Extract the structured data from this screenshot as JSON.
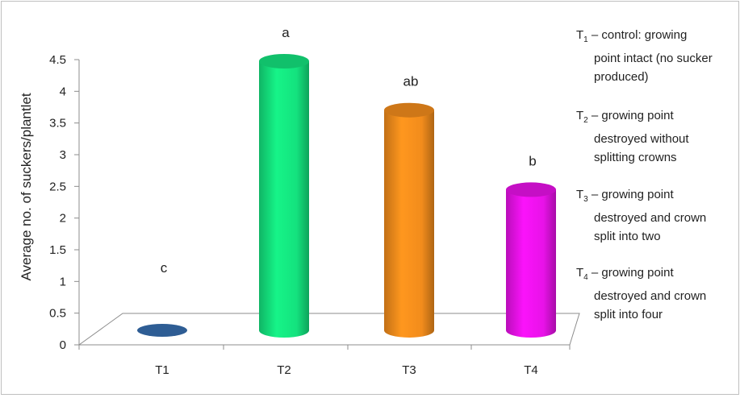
{
  "chart_data": {
    "type": "bar",
    "ylabel": "Average no. of suckers/plantlet",
    "ylim": [
      0,
      4.5
    ],
    "yticks": [
      "0",
      "0.5",
      "1",
      "1.5",
      "2",
      "2.5",
      "3",
      "3.5",
      "4",
      "4.5"
    ],
    "categories": [
      "T1",
      "T2",
      "T3",
      "T4"
    ],
    "values": [
      0,
      4.4,
      3.6,
      2.3
    ],
    "significance_letters": [
      "c",
      "a",
      "ab",
      "b"
    ],
    "colors": [
      "#2e5d94",
      "#14e27e",
      "#f28c1c",
      "#e812e8"
    ],
    "grid": false,
    "legend_position": "right",
    "legend": [
      {
        "symbol": "T",
        "sub": "1",
        "lines": [
          "– control: growing",
          "point intact (no sucker",
          "produced)"
        ]
      },
      {
        "symbol": "T",
        "sub": "2",
        "lines": [
          "– growing point",
          "destroyed without",
          "splitting crowns"
        ]
      },
      {
        "symbol": "T",
        "sub": "3",
        "lines": [
          "– growing point",
          "destroyed and crown",
          "split into two"
        ]
      },
      {
        "symbol": "T",
        "sub": "4",
        "lines": [
          "– growing point",
          "destroyed and crown",
          "split into four"
        ]
      }
    ]
  }
}
